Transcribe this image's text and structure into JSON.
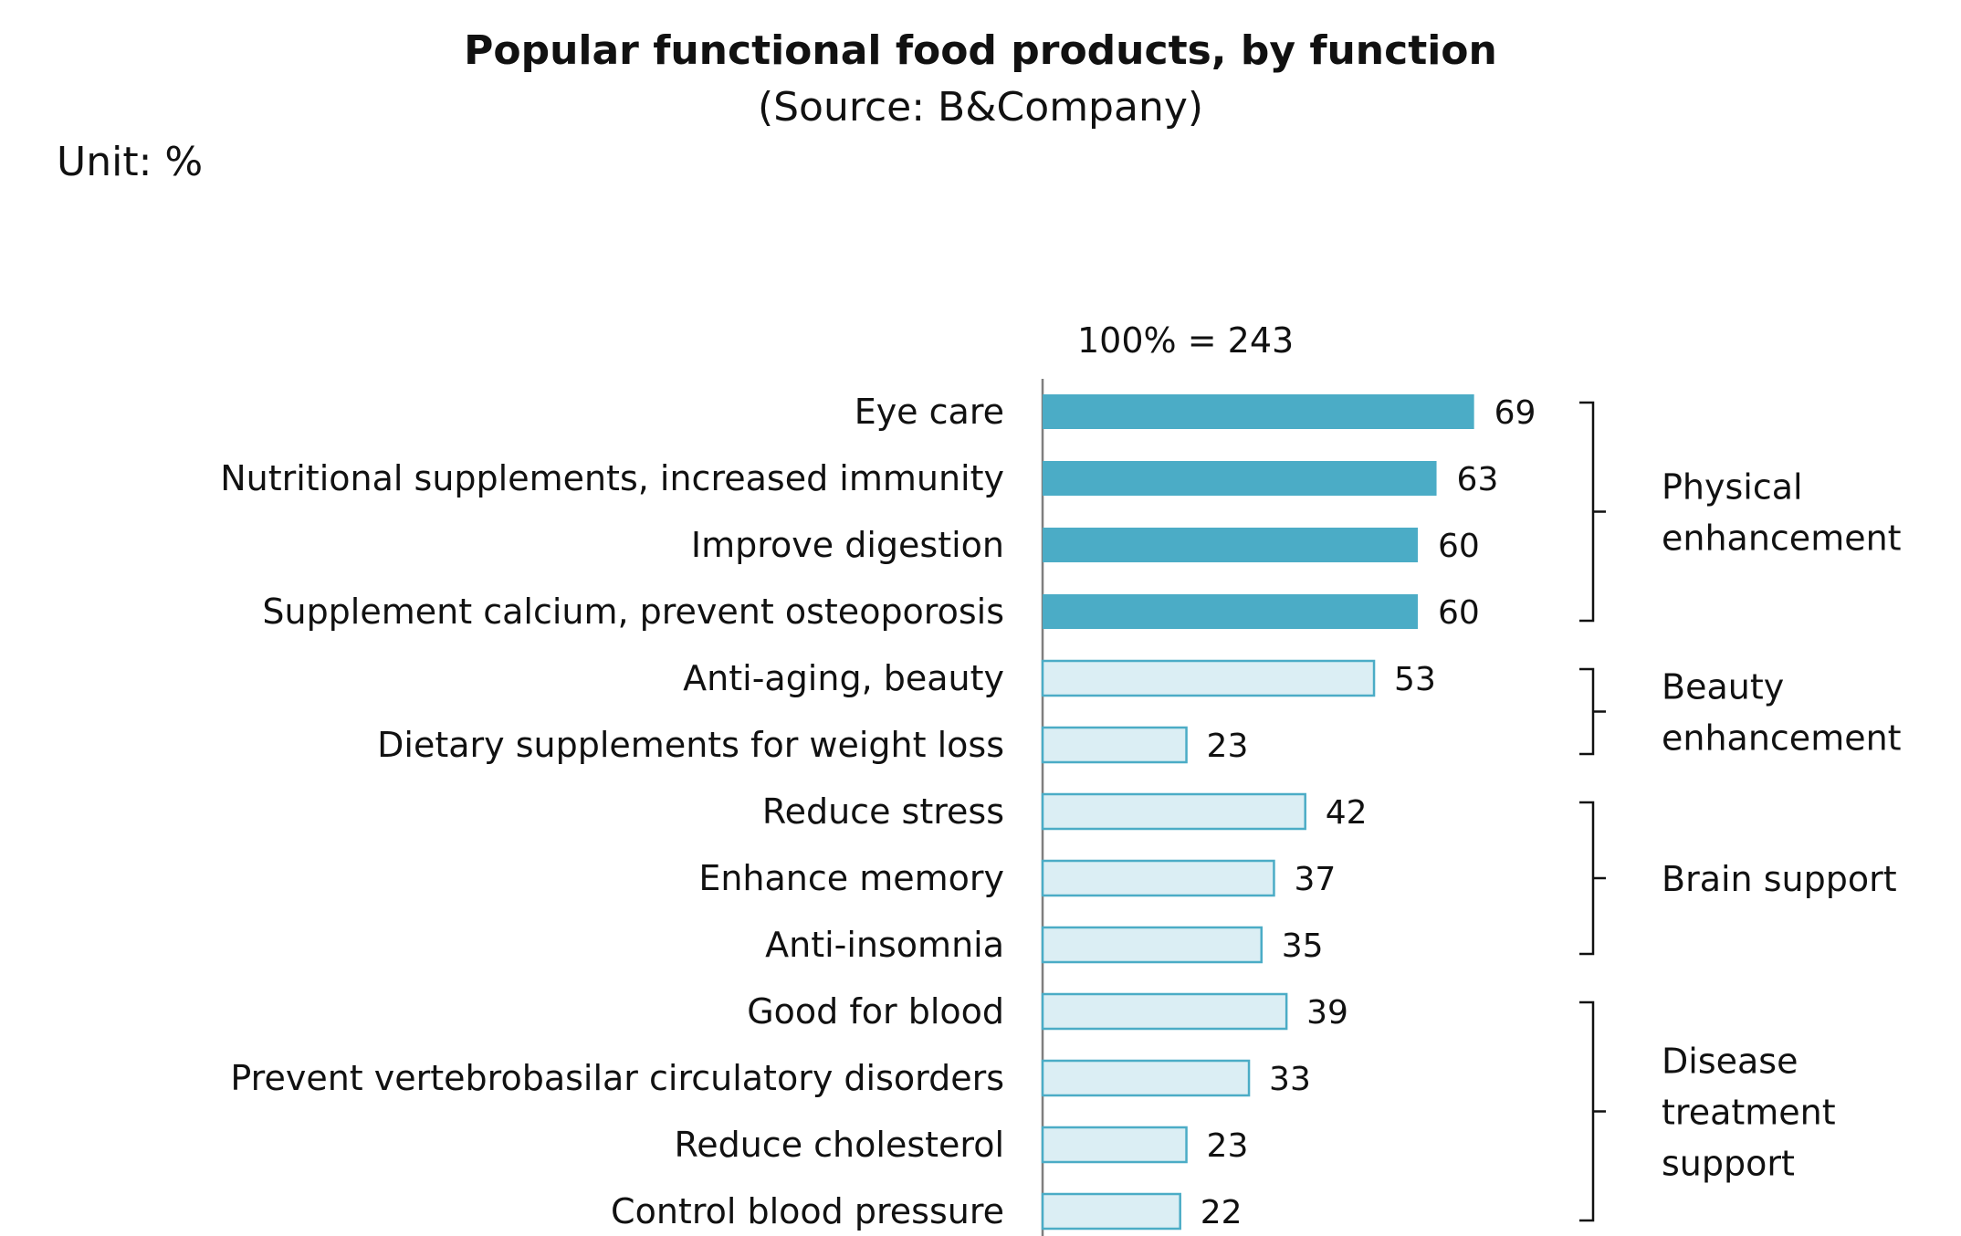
{
  "title": "Popular functional food products, by function",
  "subtitle": "(Source: B&Company)",
  "unit_label": "Unit: %",
  "base_label": "100% = 243",
  "colors": {
    "highlight_fill": "#4bacc6",
    "light_fill": "#dbeef4",
    "light_stroke": "#4bacc6",
    "axis": "#7f7f7f",
    "bracket": "#111111"
  },
  "chart_data": {
    "type": "bar",
    "orientation": "horizontal",
    "title": "Popular functional food products, by function",
    "subtitle": "(Source: B&Company)",
    "xlabel": "",
    "ylabel": "",
    "xlim": [
      0,
      100
    ],
    "grid": false,
    "categories": [
      "Eye care",
      "Nutritional supplements, increased immunity",
      "Improve digestion",
      "Supplement calcium, prevent osteoporosis",
      "Anti-aging, beauty",
      "Dietary supplements for weight loss",
      "Reduce stress",
      "Enhance memory",
      "Anti-insomnia",
      "Good for blood",
      "Prevent vertebrobasilar circulatory disorders",
      "Reduce cholesterol",
      "Control blood pressure"
    ],
    "values": [
      69,
      63,
      60,
      60,
      53,
      23,
      42,
      37,
      35,
      39,
      33,
      23,
      22
    ],
    "highlighted": [
      true,
      true,
      true,
      true,
      false,
      false,
      false,
      false,
      false,
      false,
      false,
      false,
      false
    ],
    "groups": [
      {
        "label_lines": [
          "Physical",
          "enhancement"
        ],
        "start": 0,
        "end": 3
      },
      {
        "label_lines": [
          "Beauty",
          "enhancement"
        ],
        "start": 4,
        "end": 5
      },
      {
        "label_lines": [
          "Brain support"
        ],
        "start": 6,
        "end": 8
      },
      {
        "label_lines": [
          "Disease",
          "treatment",
          "support"
        ],
        "start": 9,
        "end": 12
      }
    ]
  }
}
